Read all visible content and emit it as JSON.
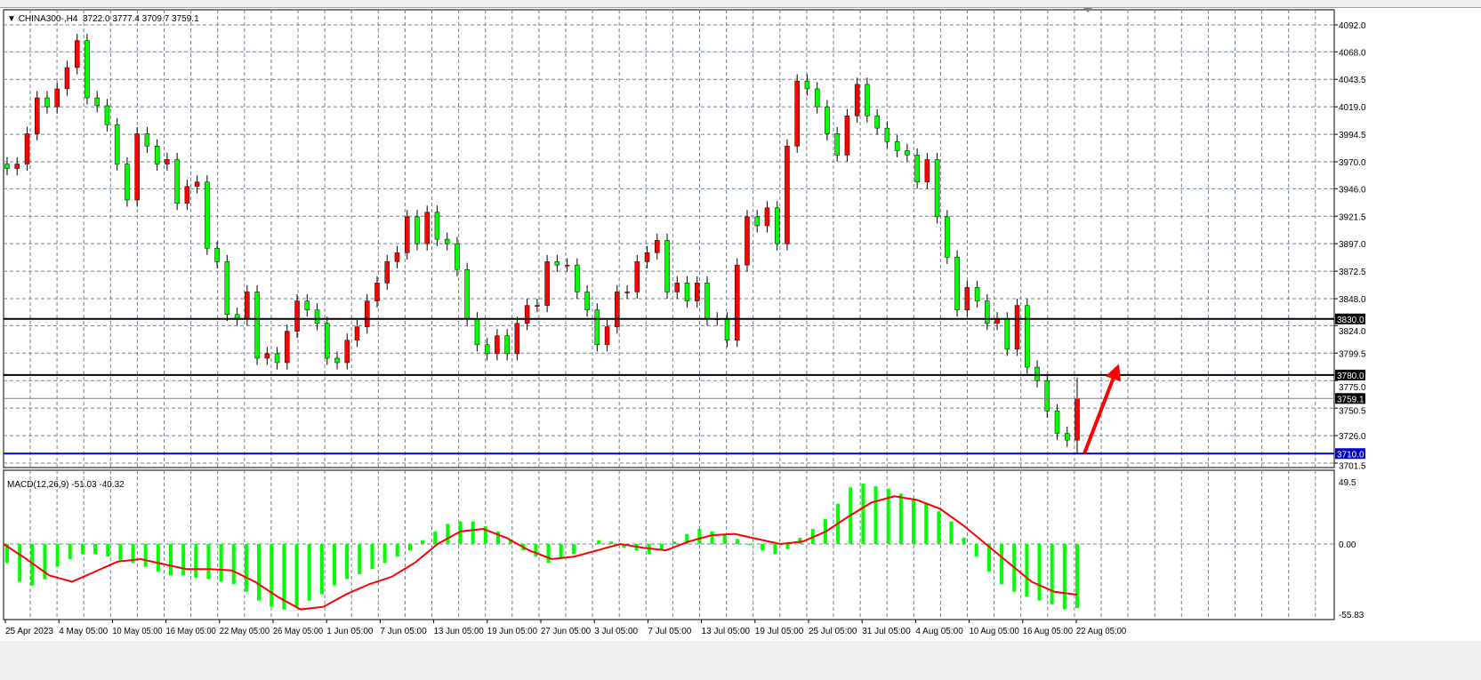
{
  "header": {
    "symbol": "CHINA300-,H4",
    "ohlc_text": "3722.0 3777.4 3709.7 3759.1",
    "menu_icon": "triangle-down-icon"
  },
  "colors": {
    "bull": "#ff0000",
    "bear": "#00ff00",
    "support": "#000000",
    "bid": "#808080",
    "blue_level": "#0000cc",
    "arrow": "#ff0000",
    "macd_hist": "#00ff00",
    "macd_signal": "#ff0000",
    "grid": "#708090"
  },
  "chart_data": [
    {
      "type": "candlestick",
      "title": "CHINA300-,H4",
      "y_ticks": [
        "4092.0",
        "4068.0",
        "4043.5",
        "4019.0",
        "3994.5",
        "3970.0",
        "3946.0",
        "3921.5",
        "3897.0",
        "3872.5",
        "3848.0",
        "3824.0",
        "3799.5",
        "3775.0",
        "3750.5",
        "3726.0",
        "3701.5"
      ],
      "ylim": [
        3701.5,
        4092.0
      ],
      "x_ticks": [
        "25 Apr 2023",
        "4 May 05:00",
        "10 May 05:00",
        "16 May 05:00",
        "22 May 05:00",
        "26 May 05:00",
        "1 Jun 05:00",
        "7 Jun 05:00",
        "13 Jun 05:00",
        "19 Jun 05:00",
        "27 Jun 05:00",
        "3 Jul 05:00",
        "7 Jul 05:00",
        "13 Jul 05:00",
        "19 Jul 05:00",
        "25 Jul 05:00",
        "31 Jul 05:00",
        "4 Aug 05:00",
        "10 Aug 05:00",
        "16 Aug 05:00",
        "22 Aug 05:00"
      ],
      "closes": [
        3964,
        3968,
        3995,
        4027,
        4019,
        4035,
        4054,
        4078,
        4027,
        4020,
        4003,
        3968,
        3936,
        3995,
        3984,
        3968,
        3972,
        3933,
        3948,
        3952,
        3893,
        3881,
        3834,
        3830,
        3854,
        3795,
        3799,
        3791,
        3819,
        3846,
        3838,
        3826,
        3795,
        3791,
        3811,
        3823,
        3846,
        3862,
        3881,
        3889,
        3921,
        3897,
        3925,
        3901,
        3897,
        3874,
        3830,
        3807,
        3799,
        3815,
        3799,
        3826,
        3842,
        3842,
        3881,
        3878,
        3878,
        3854,
        3838,
        3807,
        3823,
        3854,
        3854,
        3881,
        3889,
        3900,
        3854,
        3862,
        3846,
        3862,
        3830,
        3830,
        3811,
        3878,
        3921,
        3913,
        3929,
        3897,
        3984,
        4042,
        4035,
        4019,
        3995,
        3976,
        4011,
        4039,
        4011,
        4000,
        3988,
        3980,
        3976,
        3952,
        3972,
        3921,
        3885,
        3838,
        3858,
        3846,
        3826,
        3830,
        3803,
        3842,
        3787,
        3775,
        3748,
        3728,
        3722
      ],
      "last_bar": {
        "open": 3722.0,
        "high": 3777.4,
        "low": 3709.7,
        "close": 3759.1
      },
      "levels": [
        {
          "price": 3830.0,
          "label": "3830.0",
          "kind": "support"
        },
        {
          "price": 3780.0,
          "label": "3780.0",
          "kind": "support"
        },
        {
          "price": 3759.1,
          "label": "3759.1",
          "kind": "bid"
        },
        {
          "price": 3710.0,
          "label": "3710.0",
          "kind": "blue_level"
        }
      ],
      "annotation": {
        "type": "arrow",
        "from_price": 3710.0,
        "to_price": 3790.0,
        "direction": "up"
      },
      "grid": true
    },
    {
      "type": "bar",
      "title": "MACD(12,26,9) -51.03 -40.32",
      "y_ticks": [
        "49.5",
        "0.00",
        "-55.83"
      ],
      "ylim": [
        -55.83,
        49.5
      ],
      "histogram": [
        -15,
        -30,
        -33,
        -28,
        -18,
        -12,
        -8,
        -8,
        -10,
        -13,
        -15,
        -18,
        -22,
        -25,
        -25,
        -27,
        -28,
        -30,
        -32,
        -38,
        -45,
        -50,
        -52,
        -50,
        -45,
        -40,
        -33,
        -28,
        -24,
        -20,
        -15,
        -10,
        -5,
        3,
        10,
        16,
        18,
        18,
        14,
        10,
        3,
        -5,
        -10,
        -15,
        -12,
        -8,
        0,
        3,
        2,
        -3,
        -5,
        -8,
        -4,
        2,
        8,
        12,
        10,
        8,
        4,
        -1,
        -5,
        -8,
        -4,
        5,
        12,
        20,
        32,
        45,
        48,
        46,
        44,
        40,
        36,
        32,
        26,
        18,
        5,
        -10,
        -22,
        -32,
        -38,
        -42,
        -45,
        -48,
        -52,
        -51.03
      ],
      "signal": [
        0,
        -12,
        -25,
        -30,
        -22,
        -14,
        -12,
        -16,
        -20,
        -20,
        -21,
        -30,
        -42,
        -52,
        -50,
        -40,
        -32,
        -26,
        -15,
        0,
        10,
        12,
        5,
        -5,
        -12,
        -10,
        -5,
        0,
        -3,
        -5,
        2,
        7,
        8,
        4,
        0,
        2,
        10,
        22,
        33,
        38,
        35,
        28,
        15,
        0,
        -15,
        -30,
        -38,
        -40.32
      ]
    }
  ]
}
